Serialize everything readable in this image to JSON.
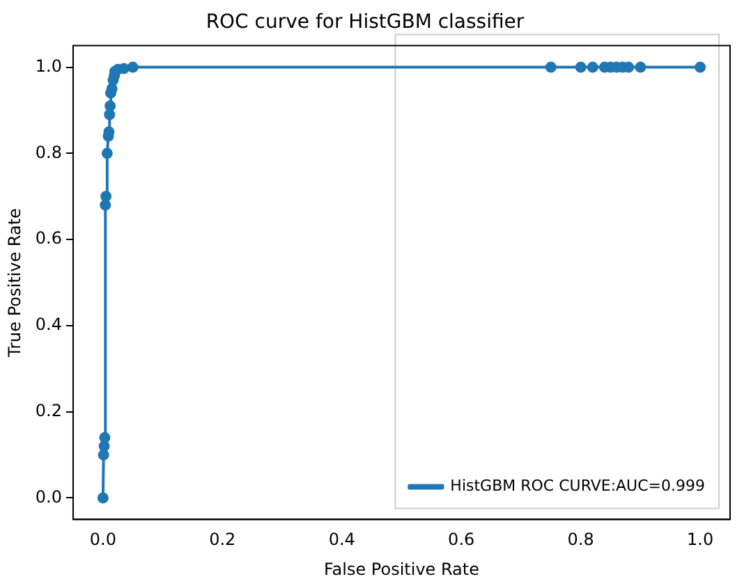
{
  "chart_data": {
    "type": "line",
    "title": "ROC curve for HistGBM classifier",
    "xlabel": "False Positive Rate",
    "ylabel": "True Positive Rate",
    "xlim": [
      -0.05,
      1.05
    ],
    "ylim": [
      -0.05,
      1.05
    ],
    "xticks": [
      {
        "value": 0,
        "label": "0.0"
      },
      0.2,
      0.4,
      0.6,
      0.8,
      {
        "value": 1,
        "label": "1.0"
      }
    ],
    "yticks": [
      {
        "value": 0,
        "label": "0.0"
      },
      0.2,
      0.4,
      0.6,
      0.8,
      {
        "value": 1,
        "label": "1.0"
      }
    ],
    "grid": false,
    "legend": "bottom right",
    "marker": "circle",
    "line_style": "solid",
    "series": [
      {
        "name": "HistGBM ROC CURVE:AUC=0.999",
        "color": "#1f77b4",
        "x": [
          0,
          0.001,
          0.002,
          0.003,
          0.004,
          0.005,
          0.007,
          0.009,
          0.01,
          0.011,
          0.012,
          0.013,
          0.015,
          0.017,
          0.019,
          0.02,
          0.025,
          0.035,
          0.05,
          0.75,
          0.8,
          0.82,
          0.84,
          0.85,
          0.86,
          0.87,
          0.88,
          0.9,
          1
        ],
        "values": [
          0,
          0.1,
          0.12,
          0.14,
          0.68,
          0.7,
          0.8,
          0.84,
          0.85,
          0.89,
          0.91,
          0.94,
          0.95,
          0.97,
          0.98,
          0.99,
          0.995,
          0.997,
          1,
          1,
          1,
          1,
          1,
          1,
          1,
          1,
          1,
          1,
          1
        ]
      }
    ]
  }
}
